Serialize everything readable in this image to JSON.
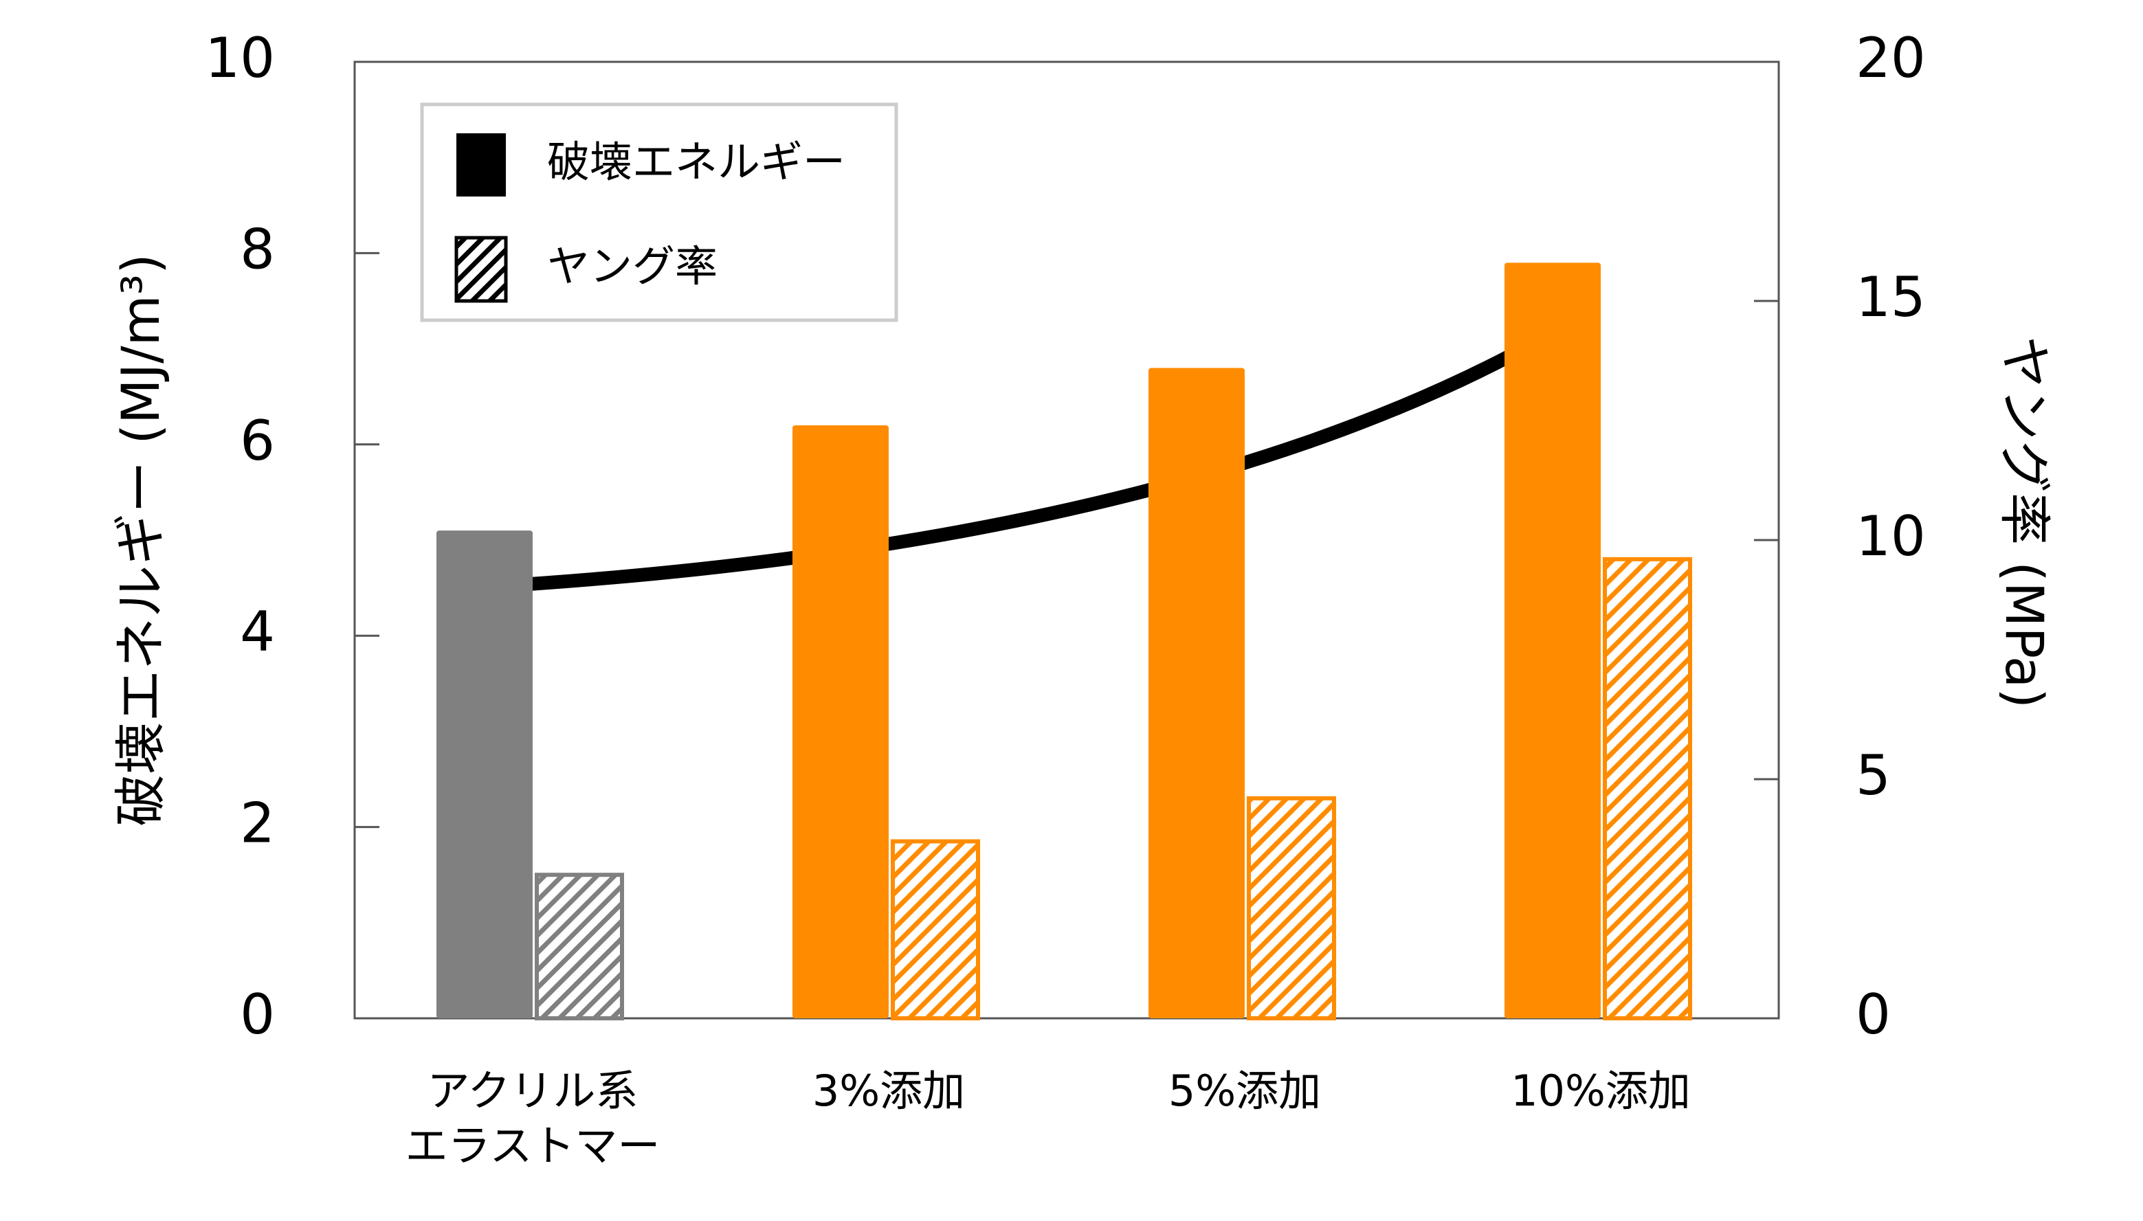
{
  "chart_data": {
    "type": "bar",
    "categories": [
      "アクリル系\nエラストマー",
      "3%添加",
      "5%添加",
      "10%添加"
    ],
    "ylabel": "破壊エネルギー (MJ/m³)",
    "y2label": "ヤング率 (MPa)",
    "ylim": [
      0,
      10
    ],
    "yticks": [
      0,
      2,
      4,
      6,
      8,
      10
    ],
    "y2lim": [
      0,
      20
    ],
    "y2ticks": [
      0,
      5,
      10,
      15,
      20
    ],
    "series": [
      {
        "name": "破壊エネルギー",
        "color": "#000000",
        "bar_colors": [
          "#808080",
          "#ff8c00",
          "#ff8c00",
          "#ff8c00"
        ],
        "values": [
          5.1,
          6.2,
          6.8,
          7.9
        ]
      },
      {
        "name": "ヤング率",
        "color": "#000000",
        "hatch": true,
        "axis": "y2",
        "bar_colors": [
          "#808080",
          "#ff8c00",
          "#ff8c00",
          "#ff8c00"
        ],
        "values": [
          3.0,
          3.7,
          4.6,
          9.6
        ]
      }
    ],
    "legend": "upper left",
    "grid": false
  }
}
